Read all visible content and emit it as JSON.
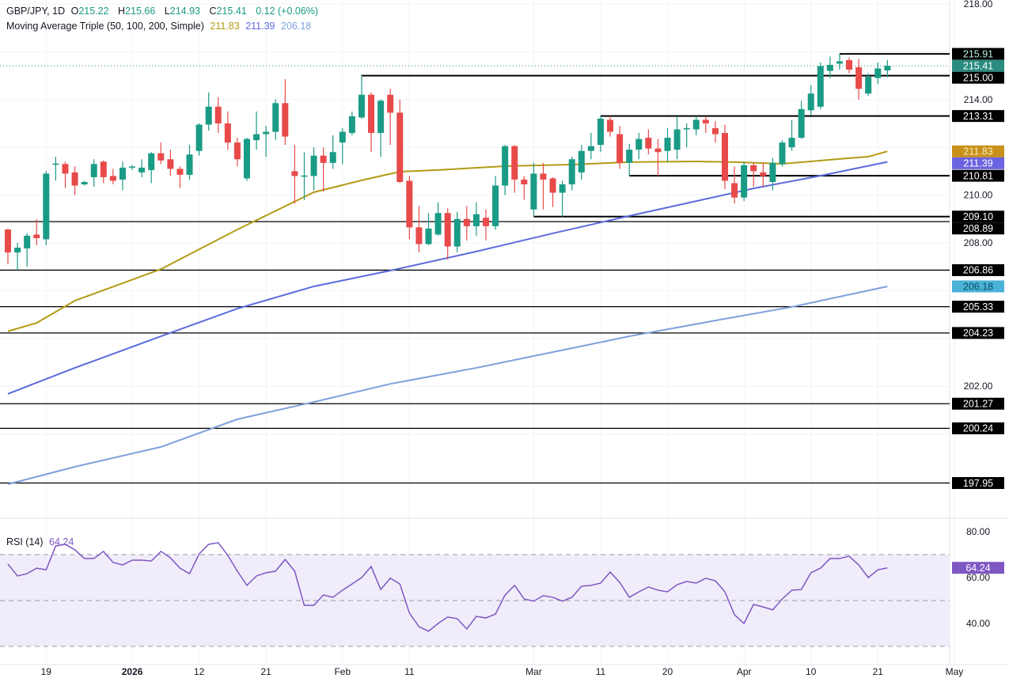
{
  "header": {
    "symbol": "GBP/JPY, 1D",
    "open_label": "O",
    "open": "215.22",
    "high_label": "H",
    "high": "215.66",
    "low_label": "L",
    "low": "214.93",
    "close_label": "C",
    "close": "215.41",
    "change": "0.12 (+0.06%)",
    "ma_title": "Moving Average Triple (50, 100, 200, Simple)",
    "ma50_value": "211.83",
    "ma100_value": "211.39",
    "ma200_value": "206.18",
    "rsi_title": "RSI (14)",
    "rsi_value": "64.24"
  },
  "colors": {
    "up": "#1a9b85",
    "down": "#e84a4a",
    "ma50": "#b39b16",
    "ma100": "#5c6bdc",
    "ma200": "#7fa0dc",
    "rsi": "#7e57c2",
    "rsi_band": "#f1ecfa",
    "level_line": "#000000"
  },
  "chart_data": [
    {
      "type": "candlestick",
      "title": "GBP/JPY, 1D",
      "y_ticks": [
        "218.00",
        "214.00",
        "210.00",
        "208.00",
        "202.00"
      ],
      "y_range": [
        196.6,
        218.0
      ],
      "x_ticks": [
        {
          "label": "19",
          "date": "2025-12-19"
        },
        {
          "label": "2026",
          "date": "2026-01-01"
        },
        {
          "label": "12",
          "date": "2026-01-12"
        },
        {
          "label": "21",
          "date": "2026-01-21"
        },
        {
          "label": "Feb",
          "date": "2026-02-02"
        },
        {
          "label": "11",
          "date": "2026-02-11"
        },
        {
          "label": "Mar",
          "date": "2026-03-02"
        },
        {
          "label": "11",
          "date": "2026-03-11"
        },
        {
          "label": "20",
          "date": "2026-03-20"
        },
        {
          "label": "Apr",
          "date": "2026-04-01"
        },
        {
          "label": "10",
          "date": "2026-04-10"
        },
        {
          "label": "21",
          "date": "2026-04-21"
        },
        {
          "label": "May",
          "date": "2026-05-01"
        }
      ],
      "candles_columns": [
        "date",
        "open",
        "high",
        "low",
        "close"
      ],
      "candles": [
        [
          "2025-12-15",
          208.56,
          208.6,
          207.1,
          207.6
        ],
        [
          "2025-12-16",
          207.6,
          208.0,
          206.86,
          207.8
        ],
        [
          "2025-12-17",
          207.77,
          208.4,
          207.0,
          208.3
        ],
        [
          "2025-12-18",
          208.35,
          209.0,
          207.9,
          208.2
        ],
        [
          "2025-12-19",
          208.15,
          211.0,
          207.9,
          210.9
        ],
        [
          "2025-12-22",
          211.3,
          211.6,
          210.6,
          211.32
        ],
        [
          "2025-12-23",
          211.3,
          211.4,
          210.3,
          210.9
        ],
        [
          "2025-12-24",
          210.95,
          211.2,
          210.0,
          210.4
        ],
        [
          "2025-12-25",
          210.45,
          210.6,
          210.4,
          210.55
        ],
        [
          "2025-12-26",
          210.75,
          211.5,
          210.35,
          211.3
        ],
        [
          "2025-12-29",
          211.4,
          211.45,
          210.5,
          210.75
        ],
        [
          "2025-12-30",
          210.8,
          211.1,
          210.45,
          210.6
        ],
        [
          "2025-12-31",
          210.65,
          211.4,
          210.2,
          211.15
        ],
        [
          "2026-01-01",
          211.15,
          211.25,
          211.05,
          211.2
        ],
        [
          "2026-01-02",
          210.95,
          211.5,
          210.75,
          211.15
        ],
        [
          "2026-01-05",
          211.05,
          211.8,
          210.5,
          211.75
        ],
        [
          "2026-01-06",
          211.75,
          212.2,
          211.3,
          211.45
        ],
        [
          "2026-01-07",
          211.5,
          211.9,
          210.8,
          211.1
        ],
        [
          "2026-01-08",
          211.1,
          211.2,
          210.3,
          210.85
        ],
        [
          "2026-01-09",
          210.85,
          212.1,
          210.65,
          211.7
        ],
        [
          "2026-01-12",
          211.85,
          213.0,
          211.65,
          212.95
        ],
        [
          "2026-01-13",
          212.95,
          214.3,
          212.7,
          213.7
        ],
        [
          "2026-01-14",
          213.7,
          214.1,
          212.6,
          213.0
        ],
        [
          "2026-01-15",
          213.0,
          213.5,
          211.9,
          212.2
        ],
        [
          "2026-01-16",
          212.2,
          212.4,
          211.2,
          211.5
        ],
        [
          "2026-01-19",
          210.7,
          212.4,
          210.6,
          212.35
        ],
        [
          "2026-01-20",
          212.3,
          213.5,
          211.9,
          212.55
        ],
        [
          "2026-01-21",
          212.55,
          212.9,
          211.6,
          212.65
        ],
        [
          "2026-01-22",
          212.65,
          214.0,
          212.3,
          213.85
        ],
        [
          "2026-01-23",
          213.85,
          214.85,
          212.1,
          212.45
        ],
        [
          "2026-01-26",
          211.0,
          212.1,
          209.65,
          210.8
        ],
        [
          "2026-01-27",
          210.8,
          211.8,
          209.8,
          210.82
        ],
        [
          "2026-01-28",
          210.8,
          212.0,
          210.2,
          211.65
        ],
        [
          "2026-01-29",
          211.65,
          212.0,
          210.15,
          211.35
        ],
        [
          "2026-01-30",
          211.35,
          212.5,
          211.1,
          211.8
        ],
        [
          "2026-02-02",
          212.2,
          212.8,
          211.3,
          212.65
        ],
        [
          "2026-02-03",
          212.6,
          213.5,
          212.5,
          213.3
        ],
        [
          "2026-02-04",
          213.25,
          215.05,
          213.2,
          214.2
        ],
        [
          "2026-02-05",
          214.2,
          214.3,
          211.8,
          212.6
        ],
        [
          "2026-02-06",
          212.6,
          214.0,
          211.6,
          213.95
        ],
        [
          "2026-02-09",
          214.2,
          214.45,
          212.1,
          213.45
        ],
        [
          "2026-02-10",
          213.45,
          214.0,
          210.5,
          210.55
        ],
        [
          "2026-02-11",
          210.6,
          210.8,
          208.15,
          208.65
        ],
        [
          "2026-02-12",
          208.65,
          209.55,
          207.6,
          207.95
        ],
        [
          "2026-02-13",
          207.95,
          209.25,
          207.9,
          208.6
        ],
        [
          "2026-02-16",
          208.35,
          209.7,
          208.3,
          209.25
        ],
        [
          "2026-02-17",
          209.25,
          209.45,
          207.3,
          207.85
        ],
        [
          "2026-02-18",
          207.85,
          209.3,
          207.6,
          209.0
        ],
        [
          "2026-02-19",
          209.0,
          209.55,
          208.1,
          208.7
        ],
        [
          "2026-02-20",
          208.7,
          209.7,
          208.3,
          209.2
        ],
        [
          "2026-02-23",
          209.05,
          209.4,
          208.1,
          208.7
        ],
        [
          "2026-02-24",
          208.7,
          210.8,
          208.55,
          210.4
        ],
        [
          "2026-02-25",
          210.4,
          212.1,
          210.0,
          212.05
        ],
        [
          "2026-02-26",
          212.05,
          212.1,
          210.1,
          210.65
        ],
        [
          "2026-02-27",
          210.65,
          210.8,
          209.8,
          210.45
        ],
        [
          "2026-03-02",
          209.4,
          211.35,
          209.1,
          210.9
        ],
        [
          "2026-03-03",
          210.9,
          211.35,
          209.4,
          210.65
        ],
        [
          "2026-03-04",
          210.7,
          210.75,
          209.5,
          210.1
        ],
        [
          "2026-03-05",
          210.1,
          210.6,
          209.1,
          210.45
        ],
        [
          "2026-03-06",
          210.45,
          211.6,
          210.2,
          211.5
        ],
        [
          "2026-03-09",
          210.95,
          212.1,
          210.65,
          211.85
        ],
        [
          "2026-03-10",
          211.85,
          212.6,
          211.5,
          212.05
        ],
        [
          "2026-03-11",
          212.1,
          213.31,
          211.8,
          213.2
        ],
        [
          "2026-03-12",
          213.15,
          213.31,
          212.45,
          212.65
        ],
        [
          "2026-03-13",
          212.55,
          212.9,
          211.1,
          211.35
        ],
        [
          "2026-03-16",
          211.35,
          212.15,
          210.81,
          211.9
        ],
        [
          "2026-03-17",
          211.9,
          212.6,
          211.5,
          212.35
        ],
        [
          "2026-03-18",
          212.4,
          212.75,
          211.7,
          211.95
        ],
        [
          "2026-03-19",
          211.95,
          212.35,
          210.81,
          211.8
        ],
        [
          "2026-03-20",
          211.85,
          212.8,
          211.4,
          212.4
        ],
        [
          "2026-03-23",
          211.9,
          213.3,
          211.5,
          212.75
        ],
        [
          "2026-03-24",
          212.75,
          213.0,
          212.0,
          212.8
        ],
        [
          "2026-03-25",
          212.75,
          213.3,
          212.5,
          213.15
        ],
        [
          "2026-03-26",
          213.15,
          213.3,
          212.6,
          213.0
        ],
        [
          "2026-03-27",
          212.8,
          213.1,
          212.2,
          212.55
        ],
        [
          "2026-03-30",
          212.6,
          212.95,
          210.25,
          210.6
        ],
        [
          "2026-03-31",
          210.5,
          211.2,
          209.65,
          209.9
        ],
        [
          "2026-04-01",
          209.9,
          211.4,
          209.75,
          211.25
        ],
        [
          "2026-04-02",
          211.25,
          211.35,
          210.35,
          211.0
        ],
        [
          "2026-04-03",
          210.95,
          211.35,
          210.35,
          210.8
        ],
        [
          "2026-04-06",
          210.55,
          211.55,
          210.2,
          211.35
        ],
        [
          "2026-04-07",
          211.3,
          212.3,
          211.2,
          212.2
        ],
        [
          "2026-04-08",
          212.0,
          213.15,
          211.85,
          212.4
        ],
        [
          "2026-04-09",
          212.4,
          213.95,
          212.35,
          213.6
        ],
        [
          "2026-04-10",
          213.55,
          214.6,
          213.35,
          214.25
        ],
        [
          "2026-04-13",
          213.7,
          215.55,
          213.6,
          215.4
        ],
        [
          "2026-04-14",
          215.2,
          215.8,
          214.9,
          215.45
        ],
        [
          "2026-04-15",
          215.5,
          215.91,
          215.25,
          215.6
        ],
        [
          "2026-04-16",
          215.65,
          215.75,
          215.1,
          215.25
        ],
        [
          "2026-04-17",
          215.35,
          215.7,
          214.0,
          214.45
        ],
        [
          "2026-04-20",
          214.25,
          215.1,
          214.15,
          214.95
        ],
        [
          "2026-04-21",
          214.9,
          215.55,
          214.65,
          215.3
        ],
        [
          "2026-04-22",
          215.22,
          215.66,
          214.93,
          215.41
        ]
      ],
      "moving_averages": [
        {
          "name": "MA 50",
          "color": "#b39b16",
          "points": [
            [
              "2025-12-15",
              204.3
            ],
            [
              "2025-12-18",
              204.65
            ],
            [
              "2025-12-24",
              205.58
            ],
            [
              "2026-01-06",
              206.9
            ],
            [
              "2026-01-16",
              208.56
            ],
            [
              "2026-01-28",
              210.12
            ],
            [
              "2026-02-04",
              210.62
            ],
            [
              "2026-02-10",
              210.98
            ],
            [
              "2026-02-16",
              211.05
            ],
            [
              "2026-02-25",
              211.21
            ],
            [
              "2026-03-06",
              211.28
            ],
            [
              "2026-03-16",
              211.38
            ],
            [
              "2026-03-25",
              211.41
            ],
            [
              "2026-03-31",
              211.38
            ],
            [
              "2026-04-07",
              211.31
            ],
            [
              "2026-04-14",
              211.48
            ],
            [
              "2026-04-20",
              211.61
            ],
            [
              "2026-04-22",
              211.83
            ]
          ]
        },
        {
          "name": "MA 100",
          "color": "#5c6bdc",
          "points": [
            [
              "2025-12-15",
              201.68
            ],
            [
              "2025-12-24",
              202.77
            ],
            [
              "2026-01-06",
              204.09
            ],
            [
              "2026-01-16",
              205.25
            ],
            [
              "2026-01-28",
              206.18
            ],
            [
              "2026-02-09",
              206.84
            ],
            [
              "2026-02-20",
              207.64
            ],
            [
              "2026-03-04",
              208.4
            ],
            [
              "2026-03-16",
              209.13
            ],
            [
              "2026-04-02",
              210.28
            ],
            [
              "2026-04-13",
              210.81
            ],
            [
              "2026-04-22",
              211.39
            ]
          ]
        },
        {
          "name": "MA 200",
          "color": "#7fa0dc",
          "points": [
            [
              "2025-12-15",
              197.9
            ],
            [
              "2025-12-24",
              198.63
            ],
            [
              "2026-01-06",
              199.46
            ],
            [
              "2026-01-16",
              200.62
            ],
            [
              "2026-01-28",
              201.34
            ],
            [
              "2026-02-09",
              202.1
            ],
            [
              "2026-02-20",
              202.77
            ],
            [
              "2026-03-04",
              203.43
            ],
            [
              "2026-03-16",
              204.09
            ],
            [
              "2026-03-27",
              204.75
            ],
            [
              "2026-04-08",
              205.32
            ],
            [
              "2026-04-22",
              206.18
            ]
          ]
        }
      ],
      "horizontal_levels": [
        {
          "value": 215.91,
          "label": "215.91",
          "from": "2026-04-15"
        },
        {
          "value": 215.0,
          "label": "215.00",
          "from": "2026-02-04"
        },
        {
          "value": 213.31,
          "label": "213.31",
          "from": "2026-03-11"
        },
        {
          "value": 210.81,
          "label": "210.81",
          "from": "2026-03-16"
        },
        {
          "value": 209.1,
          "label": "209.10",
          "from": "2026-03-02"
        },
        {
          "value": 208.89,
          "label": "208.89",
          "from": null
        },
        {
          "value": 206.86,
          "label": "206.86",
          "from": null
        },
        {
          "value": 205.33,
          "label": "205.33",
          "from": null
        },
        {
          "value": 204.23,
          "label": "204.23",
          "from": null
        },
        {
          "value": 201.27,
          "label": "201.27",
          "from": null
        },
        {
          "value": 200.24,
          "label": "200.24",
          "from": null
        },
        {
          "value": 197.95,
          "label": "197.95",
          "from": null
        }
      ],
      "price_tags": [
        {
          "value": 215.41,
          "label": "215.41",
          "bg": "#2a8c80",
          "fg": "#ffffff"
        },
        {
          "value": 211.83,
          "label": "211.83",
          "bg": "#c9901c",
          "fg": "#f5f0c0"
        },
        {
          "value": 211.39,
          "label": "211.39",
          "bg": "#6b63e0",
          "fg": "#ffffff"
        },
        {
          "value": 206.18,
          "label": "206.18",
          "bg": "#49b2d6",
          "fg": "#0b4f66"
        }
      ],
      "current_price": 215.41
    },
    {
      "type": "line",
      "title": "RSI (14)",
      "y_ticks": [
        "80.00",
        "60.00",
        "40.00"
      ],
      "y_range": [
        20.3,
        85.9
      ],
      "band": [
        30,
        70
      ],
      "dashed_levels": [
        70,
        50,
        30
      ],
      "last_label": "64.24",
      "values": [
        65.9,
        60.7,
        61.7,
        64.1,
        63.4,
        73.8,
        74.5,
        72.1,
        68.3,
        68.3,
        71.4,
        66.6,
        65.5,
        67.6,
        67.6,
        67.2,
        71.4,
        68.6,
        64.1,
        61.7,
        70.3,
        74.5,
        75.2,
        69.7,
        62.8,
        56.6,
        60.7,
        62.1,
        62.8,
        67.9,
        62.8,
        47.9,
        47.9,
        52.4,
        51.4,
        54.5,
        57.2,
        60.0,
        64.8,
        54.8,
        59.7,
        57.2,
        44.5,
        38.6,
        36.6,
        40.0,
        42.8,
        42.1,
        37.6,
        43.1,
        42.4,
        44.1,
        52.4,
        56.6,
        50.7,
        49.7,
        52.1,
        51.4,
        49.7,
        51.4,
        56.2,
        56.6,
        57.6,
        62.4,
        57.9,
        51.4,
        53.8,
        55.9,
        54.5,
        53.8,
        56.9,
        58.3,
        57.6,
        59.7,
        58.6,
        53.8,
        43.8,
        40.0,
        48.3,
        47.2,
        45.9,
        50.7,
        54.5,
        54.8,
        62.1,
        64.1,
        68.3,
        68.3,
        69.3,
        65.5,
        60.0,
        63.4,
        64.24
      ]
    }
  ]
}
